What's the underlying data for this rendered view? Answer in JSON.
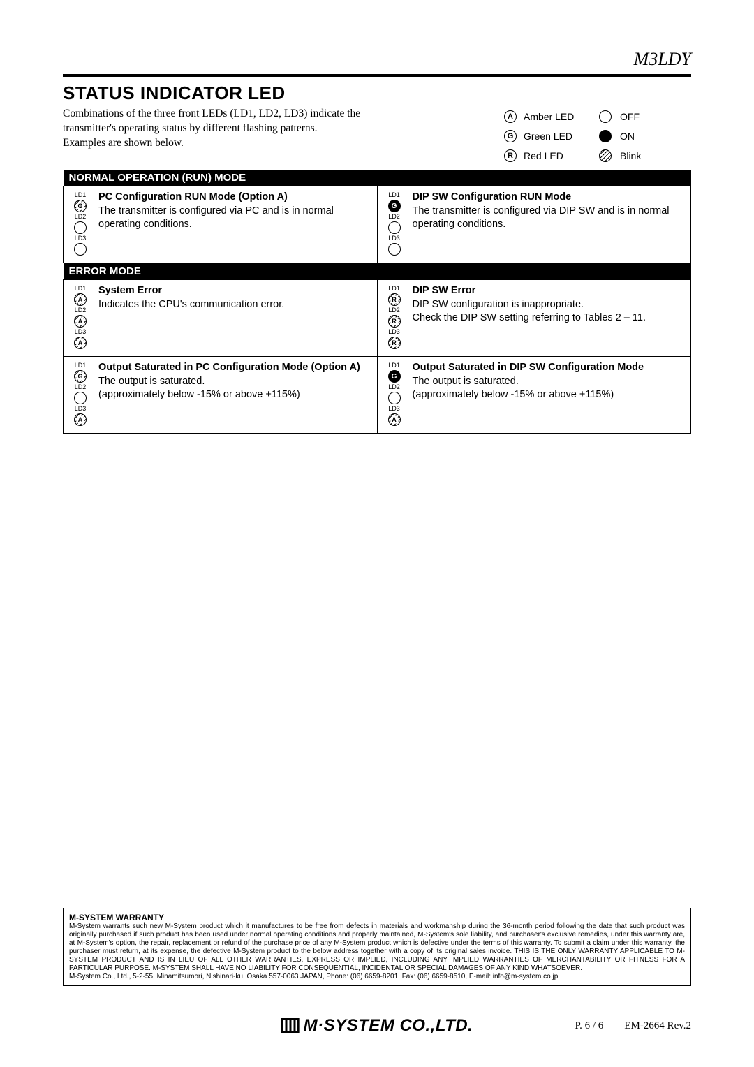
{
  "model": "M3LDY",
  "section_title": "STATUS INDICATOR LED",
  "intro": "Combinations of the three front LEDs (LD1, LD2, LD3) indicate the transmitter's operating status by different flashing patterns.\nExamples are shown below.",
  "legend": {
    "amber_letter": "A",
    "amber_label": "Amber LED",
    "off_label": "OFF",
    "green_letter": "G",
    "green_label": "Green LED",
    "on_label": "ON",
    "red_letter": "R",
    "red_label": "Red LED",
    "blink_label": "Blink"
  },
  "headers": {
    "normal": "NORMAL OPERATION (RUN) MODE",
    "error": "ERROR MODE"
  },
  "cells": {
    "n1": {
      "title": "PC Configuration RUN Mode (Option A)",
      "body": "The transmitter is configured via PC and is in normal operating conditions."
    },
    "n2": {
      "title": "DIP SW Configuration RUN Mode",
      "body": "The transmitter is configured via DIP SW and is in normal operating conditions."
    },
    "e1": {
      "title": "System Error",
      "body": "Indicates the CPU's communication error."
    },
    "e2": {
      "title": "DIP SW Error",
      "body": "DIP SW configuration is inappropriate.\nCheck the DIP SW setting referring to Tables 2 – 11."
    },
    "e3": {
      "title": "Output Saturated in PC Configuration Mode (Option A)",
      "body": "The output is saturated.\n(approximately below -15% or above +115%)"
    },
    "e4": {
      "title": "Output Saturated in DIP SW Configuration Mode",
      "body": "The output is saturated.\n(approximately below -15% or above +115%)"
    }
  },
  "leds": {
    "ld1": "LD1",
    "ld2": "LD2",
    "ld3": "LD3",
    "A": "A",
    "G": "G",
    "R": "R"
  },
  "warranty": {
    "title": "M-SYSTEM WARRANTY",
    "body": "M-System warrants such new M-System product which it manufactures to be free from defects in materials and workmanship during the 36-month period following the date that such product was originally purchased if such product has been used under normal operating conditions and properly maintained, M-System's sole liability, and purchaser's exclusive remedies, under this warranty are, at M-System's option, the repair, replacement or refund of the purchase price of any M-System product which is defective under the terms of this warranty. To submit a claim under this warranty, the purchaser must return, at its expense, the defective M-System product to the below address together with a copy of its original sales invoice. THIS IS THE ONLY WARRANTY APPLICABLE TO M-SYSTEM PRODUCT AND IS IN LIEU OF ALL OTHER WARRANTIES, EXPRESS OR IMPLIED, INCLUDING ANY IMPLIED WARRANTIES OF MERCHANTABILITY OR FITNESS FOR A PARTICULAR PURPOSE. M-SYSTEM SHALL HAVE NO LIABILITY FOR CONSEQUENTIAL, INCIDENTAL OR SPECIAL DAMAGES OF ANY KIND WHATSOEVER.",
    "contact": "M-System Co., Ltd., 5-2-55, Minamitsumori, Nishinari-ku, Osaka 557-0063 JAPAN, Phone: (06) 6659-8201, Fax: (06) 6659-8510, E-mail: info@m-system.co.jp"
  },
  "footer": {
    "logo_text": "M·SYSTEM CO.,LTD.",
    "page": "P. 6 / 6",
    "rev": "EM-2664 Rev.2"
  }
}
